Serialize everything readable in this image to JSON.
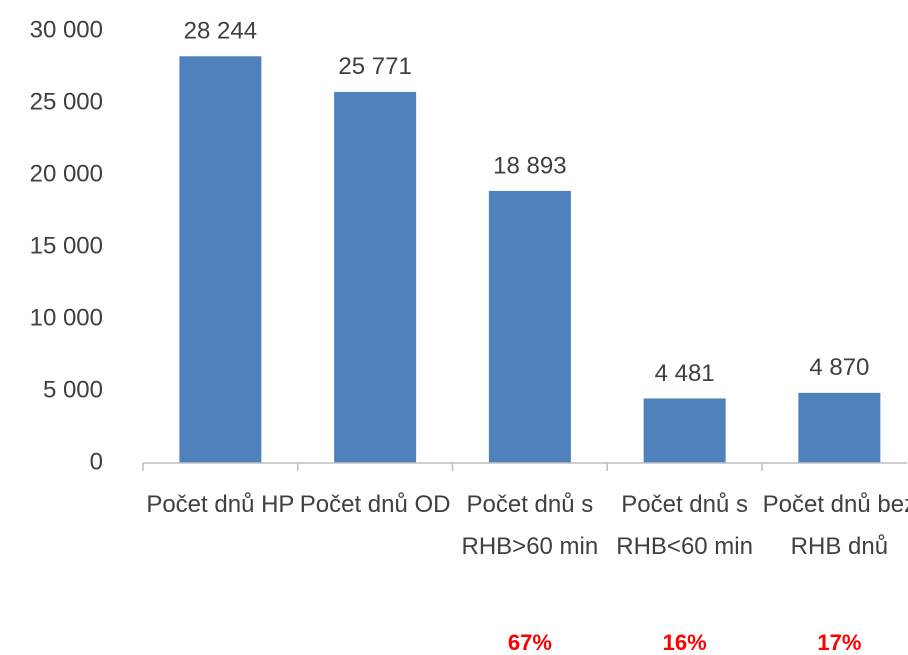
{
  "chart_data": {
    "type": "bar",
    "categories": [
      "Počet dnů HP",
      "Počet dnů OD",
      "Počet dnů s RHB>60 min",
      "Počet dnů s RHB<60 min",
      "Počet dnů bez RHB dnů"
    ],
    "values": [
      28244,
      25771,
      18893,
      4481,
      4870
    ],
    "value_labels": [
      "28 244",
      "25 771",
      "18 893",
      "4 481",
      "4 870"
    ],
    "color": "#4f81bd",
    "ylim": [
      0,
      30000
    ],
    "yticks": [
      0,
      {
        "value": 5000,
        "label": "5 000"
      },
      {
        "value": 10000,
        "label": "10 000"
      },
      {
        "value": 15000,
        "label": "15 000"
      },
      {
        "value": 20000,
        "label": "20 000"
      },
      {
        "value": 25000,
        "label": "25 000"
      },
      {
        "value": 30000,
        "label": "30 000"
      }
    ],
    "grid": false,
    "share_labels": [
      null,
      null,
      "67%",
      "16%",
      "17%"
    ],
    "share_color": "#ff0000"
  }
}
